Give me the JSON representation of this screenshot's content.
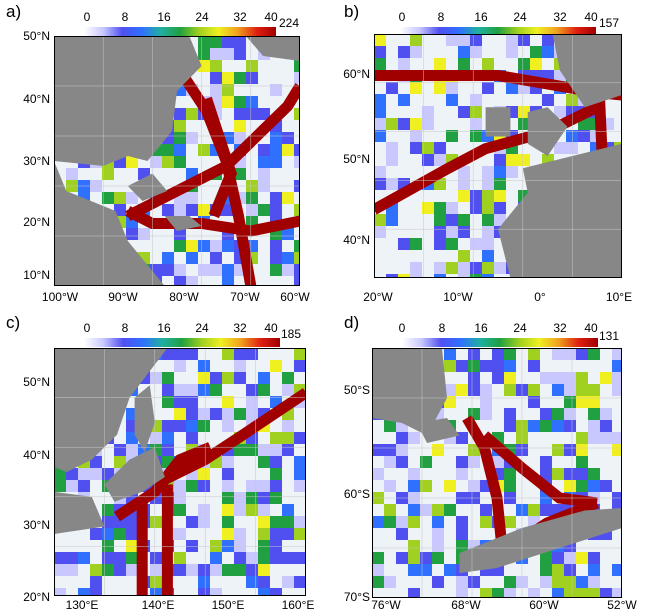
{
  "colorbar": {
    "ticks": [
      "0",
      "8",
      "16",
      "24",
      "32",
      "40"
    ],
    "range": [
      0,
      40
    ],
    "colors": [
      "#ffffff",
      "#c8c8ff",
      "#5050f0",
      "#3070ff",
      "#20b0a0",
      "#20a040",
      "#a0d020",
      "#f0f020",
      "#f0a020",
      "#e02010",
      "#a00000"
    ]
  },
  "colors": {
    "land": "#878787",
    "ocean_empty": "#eef3f7",
    "grid": "#c8c8c8"
  },
  "panels": [
    {
      "label": "a)",
      "cbar_max": "224",
      "lat_labels": [
        "50°N",
        "40°N",
        "30°N",
        "20°N",
        "10°N"
      ],
      "lon_labels": [
        "100°W",
        "90°W",
        "80°W",
        "70°W",
        "60°W"
      ]
    },
    {
      "label": "b)",
      "cbar_max": "157",
      "lat_labels": [
        "60°N",
        "50°N",
        "40°N"
      ],
      "lon_labels": [
        "20°W",
        "10°W",
        "0°",
        "10°E"
      ]
    },
    {
      "label": "c)",
      "cbar_max": "185",
      "lat_labels": [
        "50°N",
        "40°N",
        "30°N",
        "20°N"
      ],
      "lon_labels": [
        "130°E",
        "140°E",
        "150°E",
        "160°E"
      ]
    },
    {
      "label": "d)",
      "cbar_max": "131",
      "lat_labels": [
        "50°S",
        "60°S",
        "70°S"
      ],
      "lon_labels": [
        "76°W",
        "68°W",
        "60°W",
        "52°W"
      ]
    }
  ]
}
